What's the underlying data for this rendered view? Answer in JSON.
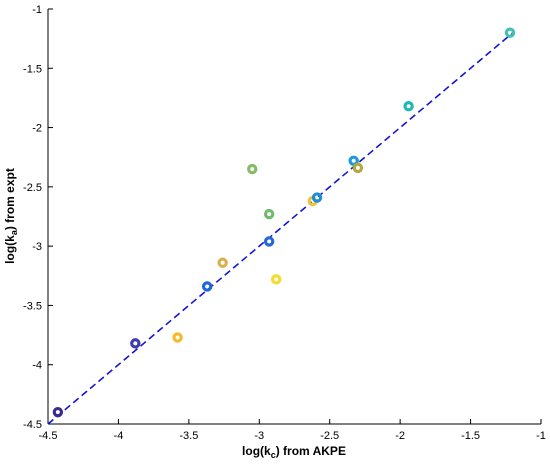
{
  "chart_data": {
    "type": "scatter",
    "title": "",
    "xlabel": "log(kc) from AKPE",
    "ylabel": "log(ka) from expt",
    "xlabel_parts": {
      "pre": "log(k",
      "sub": "c",
      "post": ") from AKPE"
    },
    "ylabel_parts": {
      "pre": "log(k",
      "sub": "a",
      "post": ") from expt"
    },
    "xlim": [
      -4.5,
      -1
    ],
    "ylim": [
      -4.5,
      -1
    ],
    "xticks": [
      -4.5,
      -4,
      -3.5,
      -3,
      -2.5,
      -2,
      -1.5,
      -1
    ],
    "yticks": [
      -4.5,
      -4,
      -3.5,
      -3,
      -2.5,
      -2,
      -1.5,
      -1
    ],
    "xtick_labels": [
      "-4.5",
      "-4",
      "-3.5",
      "-3",
      "-2.5",
      "-2",
      "-1.5",
      "-1"
    ],
    "ytick_labels": [
      "-4.5",
      "-4",
      "-3.5",
      "-3",
      "-2.5",
      "-2",
      "-1.5",
      "-1"
    ],
    "grid": false,
    "reference_line": {
      "x": [
        -4.5,
        -1.2
      ],
      "y": [
        -4.5,
        -1.2
      ],
      "style": "dashed",
      "color": "#1414d8"
    },
    "points": [
      {
        "x": -4.43,
        "y": -4.4,
        "color": "#3a2a8c"
      },
      {
        "x": -3.88,
        "y": -3.82,
        "color": "#3d3da8"
      },
      {
        "x": -3.58,
        "y": -3.77,
        "color": "#f2bb2c"
      },
      {
        "x": -3.37,
        "y": -3.34,
        "color": "#1f67d8"
      },
      {
        "x": -3.26,
        "y": -3.14,
        "color": "#d9b04a"
      },
      {
        "x": -3.05,
        "y": -2.35,
        "color": "#84bc68"
      },
      {
        "x": -2.93,
        "y": -2.73,
        "color": "#6fbb6d"
      },
      {
        "x": -2.93,
        "y": -2.96,
        "color": "#2569d8"
      },
      {
        "x": -2.88,
        "y": -3.28,
        "color": "#f6dc2a"
      },
      {
        "x": -2.62,
        "y": -2.62,
        "color": "#f0c23a"
      },
      {
        "x": -2.59,
        "y": -2.59,
        "color": "#1c8fd8"
      },
      {
        "x": -2.33,
        "y": -2.28,
        "color": "#1a9bd8"
      },
      {
        "x": -2.3,
        "y": -2.34,
        "color": "#b4a840"
      },
      {
        "x": -1.94,
        "y": -1.82,
        "color": "#1cb8b8"
      },
      {
        "x": -1.22,
        "y": -1.2,
        "color": "#3fc2b0"
      }
    ]
  }
}
